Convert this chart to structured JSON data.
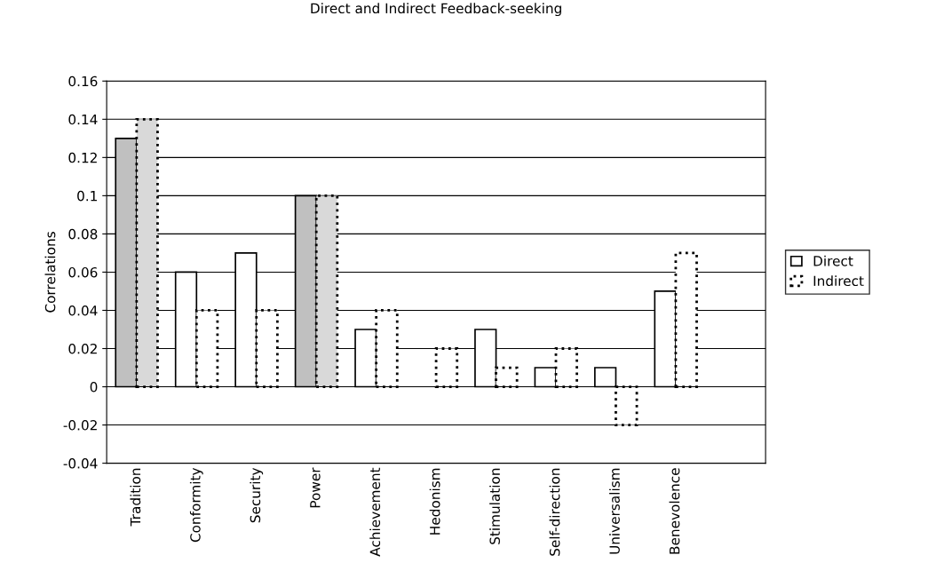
{
  "chart_data": {
    "type": "bar",
    "title": "Direct and Indirect Feedback-seeking",
    "ylabel": "Correlations",
    "categories": [
      "Tradition",
      "Conformity",
      "Security",
      "Power",
      "Achievement",
      "Hedonism",
      "Stimulation",
      "Self-direction",
      "Universalism",
      "Benevolence",
      null
    ],
    "series": [
      {
        "name": "Direct",
        "color": "#ffffff",
        "colors": [
          "#c0c0c0",
          "#ffffff",
          "#ffffff",
          "#c0c0c0",
          "#ffffff",
          "#ffffff",
          "#ffffff",
          "#ffffff",
          "#ffffff",
          "#ffffff",
          "#ffffff"
        ],
        "line_style": "solid",
        "values": [
          0.13,
          0.06,
          0.07,
          0.1,
          0.03,
          null,
          0.03,
          0.01,
          0.01,
          0.05,
          null
        ]
      },
      {
        "name": "Indirect",
        "color": "#ffffff",
        "colors": [
          "#d9d9d9",
          "#ffffff",
          "#ffffff",
          "#d9d9d9",
          "#ffffff",
          "#ffffff",
          "#ffffff",
          "#ffffff",
          "#ffffff",
          "#ffffff",
          "#ffffff"
        ],
        "line_style": "dotted",
        "values": [
          0.14,
          0.04,
          0.04,
          0.1,
          0.04,
          0.02,
          0.01,
          0.02,
          -0.02,
          0.07,
          null
        ]
      }
    ],
    "ylim": [
      -0.04,
      0.16
    ],
    "yticks": [
      -0.04,
      -0.02,
      0,
      0.02,
      0.04,
      0.06,
      0.08,
      0.1,
      0.12,
      0.14,
      0.16
    ],
    "grid": "y",
    "legend": "right"
  }
}
